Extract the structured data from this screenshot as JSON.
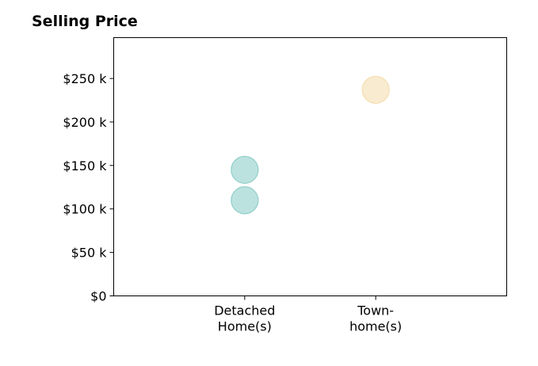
{
  "chart_data": {
    "type": "scatter",
    "title": "Selling Price",
    "xlabel": "",
    "ylabel": "",
    "categories": [
      [
        "Detached",
        "Home(s)"
      ],
      [
        "Town-",
        "home(s)"
      ]
    ],
    "y_ticks": [
      {
        "value": 0,
        "label": "$0"
      },
      {
        "value": 50000,
        "label": "$50 k"
      },
      {
        "value": 100000,
        "label": "$100 k"
      },
      {
        "value": 150000,
        "label": "$150 k"
      },
      {
        "value": 200000,
        "label": "$200 k"
      },
      {
        "value": 250000,
        "label": "$250 k"
      }
    ],
    "ylim": [
      0,
      297000
    ],
    "xlim": [
      -1,
      2
    ],
    "grid": false,
    "series": [
      {
        "category_index": 0,
        "color": "#8fcfca",
        "values": [
          145000,
          110000
        ]
      },
      {
        "category_index": 1,
        "color": "#f5deb0",
        "values": [
          237000
        ]
      }
    ]
  }
}
